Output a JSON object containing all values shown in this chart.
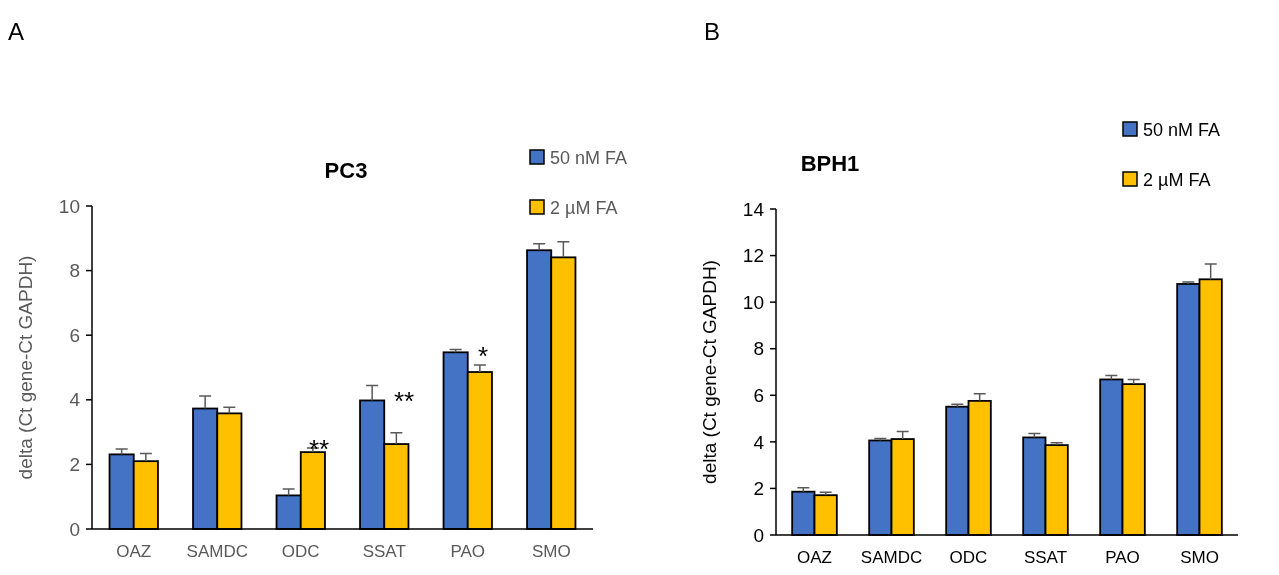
{
  "chart_data": [
    {
      "type": "bar",
      "title": "PC3",
      "ylabel": "delta (Ct gene-Ct GAPDH)",
      "categories": [
        "OAZ",
        "SAMDC",
        "ODC",
        "SSAT",
        "PAO",
        "SMO"
      ],
      "ylim": [
        0,
        10
      ],
      "yticks": [
        0,
        2,
        4,
        6,
        8,
        10
      ],
      "grid": false,
      "legend": "top right",
      "series": [
        {
          "name": "50 nM FA",
          "color": "#4472c4",
          "values": [
            2.31,
            3.73,
            1.04,
            3.98,
            5.47,
            8.63
          ],
          "errors": [
            [
              2.31,
              2.48
            ],
            [
              3.73,
              4.12
            ],
            [
              1.04,
              1.24
            ],
            [
              3.98,
              4.44
            ],
            [
              5.47,
              5.56
            ],
            [
              8.63,
              8.83
            ]
          ]
        },
        {
          "name": "2 µM FA",
          "color": "#ffc000",
          "values": [
            2.1,
            3.58,
            2.38,
            2.63,
            4.86,
            8.41
          ],
          "errors": [
            [
              2.1,
              2.34
            ],
            [
              3.58,
              3.77
            ],
            [
              2.38,
              2.51
            ],
            [
              2.63,
              2.98
            ],
            [
              4.86,
              5.08
            ],
            [
              8.41,
              8.89
            ]
          ]
        }
      ],
      "annotations": [
        "A",
        "**",
        "**",
        "*"
      ]
    },
    {
      "type": "bar",
      "title": "BPH1",
      "ylabel": "delta (Ct gene-Ct GAPDH)",
      "categories": [
        "OAZ",
        "SAMDC",
        "ODC",
        "SSAT",
        "PAO",
        "SMO"
      ],
      "ylim": [
        0,
        14
      ],
      "yticks": [
        0,
        2,
        4,
        6,
        8,
        10,
        12,
        14
      ],
      "grid": false,
      "legend": "top right",
      "series": [
        {
          "name": "50 nM FA",
          "color": "#4472c4",
          "values": [
            1.86,
            4.06,
            5.51,
            4.19,
            6.68,
            10.78
          ],
          "errors": [
            [
              1.86,
              2.03
            ],
            [
              4.06,
              4.14
            ],
            [
              5.51,
              5.61
            ],
            [
              4.19,
              4.36
            ],
            [
              6.68,
              6.85
            ],
            [
              10.78,
              10.86
            ]
          ]
        },
        {
          "name": "2 µM FA",
          "color": "#ffc000",
          "values": [
            1.71,
            4.12,
            5.76,
            3.86,
            6.48,
            10.98
          ],
          "errors": [
            [
              1.71,
              1.84
            ],
            [
              4.12,
              4.44
            ],
            [
              5.76,
              6.07
            ],
            [
              3.86,
              3.96
            ],
            [
              6.48,
              6.68
            ],
            [
              10.98,
              11.64
            ]
          ]
        }
      ],
      "annotations": [
        "B"
      ]
    }
  ]
}
